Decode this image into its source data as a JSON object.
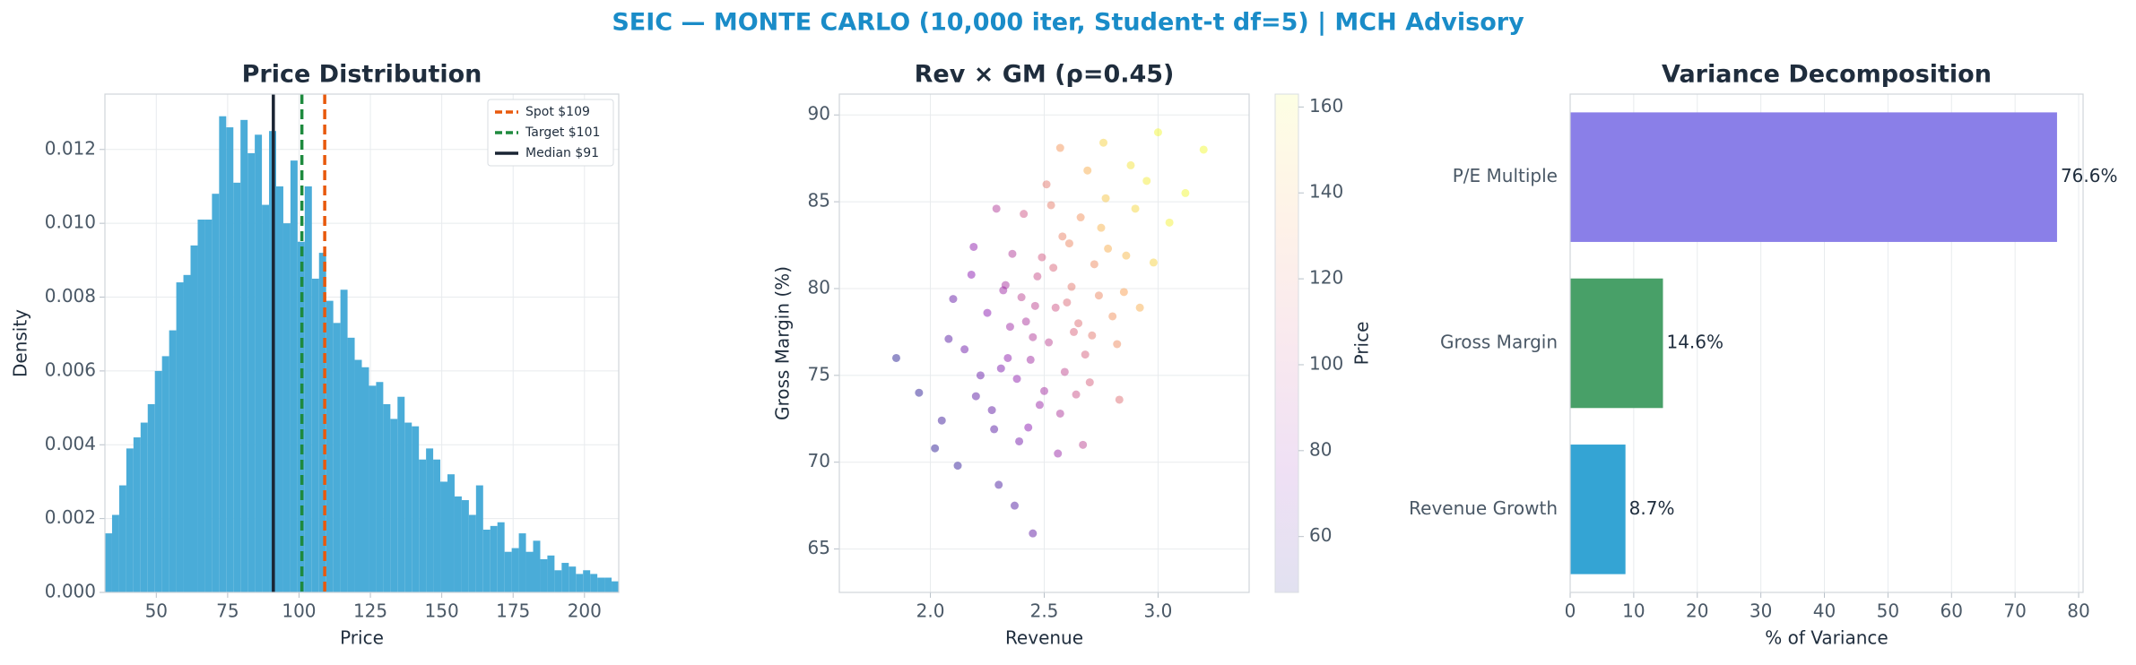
{
  "title": "SEIC — MONTE CARLO (10,000 iter, Student-t df=5) | MCH Advisory",
  "chart_data": [
    {
      "type": "histogram",
      "title": "Price Distribution",
      "xlabel": "Price",
      "ylabel": "Density",
      "color": "#4aacd8",
      "grid": true,
      "bins": [
        32,
        34.5,
        37,
        39.5,
        42,
        44.5,
        47,
        49.5,
        52,
        54.5,
        57,
        59.5,
        62,
        64.5,
        67,
        69.5,
        72,
        74.5,
        77,
        79.5,
        82,
        84.5,
        87,
        89.5,
        92,
        94.5,
        97,
        99.5,
        102,
        104.5,
        107,
        109.5,
        112,
        114.5,
        117,
        119.5,
        122,
        124.5,
        127,
        129.5,
        132,
        134.5,
        137,
        139.5,
        142,
        144.5,
        147,
        149.5,
        152,
        154.5,
        157,
        159.5,
        162,
        164.5,
        167,
        169.5,
        172,
        174.5,
        177,
        179.5,
        182,
        184.5,
        187,
        189.5,
        192,
        194.5,
        197,
        199.5,
        202,
        204.5,
        207,
        209.5,
        212
      ],
      "values": [
        0.0016,
        0.0021,
        0.0029,
        0.0039,
        0.0042,
        0.0046,
        0.0051,
        0.006,
        0.0064,
        0.0071,
        0.0084,
        0.0086,
        0.0094,
        0.0101,
        0.0101,
        0.0108,
        0.0129,
        0.0126,
        0.0111,
        0.0128,
        0.0119,
        0.0124,
        0.0105,
        0.0125,
        0.011,
        0.01,
        0.0117,
        0.0095,
        0.011,
        0.0085,
        0.0092,
        0.0079,
        0.0073,
        0.0082,
        0.0069,
        0.0063,
        0.0061,
        0.0056,
        0.0057,
        0.0051,
        0.0047,
        0.0053,
        0.0046,
        0.0045,
        0.0036,
        0.0039,
        0.0036,
        0.003,
        0.0032,
        0.0026,
        0.0025,
        0.0021,
        0.0029,
        0.0017,
        0.0018,
        0.0019,
        0.0011,
        0.0012,
        0.0016,
        0.0011,
        0.0014,
        0.0009,
        0.001,
        0.0006,
        0.0008,
        0.0007,
        0.0005,
        0.0006,
        0.0005,
        0.0004,
        0.0004,
        0.0003
      ],
      "xlim": [
        32,
        212
      ],
      "xticks": [
        50,
        75,
        100,
        125,
        150,
        175,
        200
      ],
      "ylim": [
        0,
        0.0135
      ],
      "yticks": [
        {
          "value": 0,
          "label": "0.000"
        },
        {
          "value": 0.002,
          "label": "0.002"
        },
        {
          "value": 0.004,
          "label": "0.004"
        },
        {
          "value": 0.006,
          "label": "0.006"
        },
        {
          "value": 0.008,
          "label": "0.008"
        },
        {
          "value": 0.01,
          "label": "0.010"
        },
        {
          "value": 0.012,
          "label": "0.012"
        }
      ],
      "legend": "upper right",
      "vlines": [
        {
          "name": "Spot $109",
          "value": 109,
          "color": "#e8590c",
          "style": "dashed"
        },
        {
          "name": "Target $101",
          "value": 101,
          "color": "#1e8a3e",
          "style": "dashed"
        },
        {
          "name": "Median $91",
          "value": 91,
          "color": "#1a2433",
          "style": "solid"
        }
      ]
    },
    {
      "type": "scatter",
      "title": "Rev × GM (ρ=0.45)",
      "xlabel": "Revenue",
      "ylabel": "Gross Margin (%)",
      "grid": true,
      "colormap": "plasma",
      "x": [
        2.45,
        2.62,
        2.31,
        2.78,
        2.55,
        2.2,
        2.9,
        2.4,
        2.68,
        2.35,
        2.5,
        2.72,
        2.15,
        2.85,
        2.58,
        2.28,
        2.47,
        2.63,
        2.38,
        2.95,
        2.05,
        2.52,
        2.66,
        2.42,
        2.8,
        2.33,
        2.57,
        2.75,
        2.25,
        2.6,
        2.44,
        3.05,
        2.12,
        2.7,
        2.36,
        2.54,
        2.48,
        2.88,
        2.18,
        2.65,
        2.3,
        2.82,
        2.41,
        2.59,
        2.74,
        2.22,
        2.51,
        2.39,
        2.98,
        2.08,
        2.69,
        2.46,
        2.56,
        2.77,
        2.27,
        2.61,
        2.34,
        3.12,
        1.95,
        2.53,
        2.43,
        2.86,
        2.19,
        2.64,
        2.49,
        2.32,
        2.71,
        2.1,
        2.92,
        2.37,
        2.76,
        2.29,
        2.67,
        2.02,
        3.0,
        2.57,
        1.85,
        2.83,
        2.45,
        3.2
      ],
      "values": [
        77.2,
        80.1,
        75.4,
        82.3,
        78.9,
        73.8,
        84.6,
        79.5,
        76.2,
        77.8,
        74.1,
        81.4,
        76.5,
        79.8,
        83.0,
        71.9,
        80.7,
        77.5,
        74.8,
        86.2,
        72.4,
        76.9,
        84.1,
        78.1,
        78.4,
        80.2,
        72.8,
        83.5,
        78.6,
        79.2,
        75.9,
        83.8,
        69.8,
        74.6,
        82.0,
        81.2,
        73.3,
        87.1,
        80.8,
        78.0,
        68.7,
        76.8,
        84.3,
        75.2,
        79.6,
        75.0,
        86.0,
        71.2,
        81.5,
        77.1,
        86.8,
        79.0,
        70.5,
        85.2,
        73.0,
        82.6,
        76.0,
        85.5,
        74.0,
        84.8,
        72.0,
        81.9,
        82.4,
        73.9,
        81.8,
        79.9,
        77.3,
        79.4,
        78.9,
        67.5,
        88.4,
        84.6,
        71.0,
        70.8,
        89.0,
        88.1,
        76.0,
        73.6,
        65.9,
        88.0
      ],
      "c": [
        92,
        118,
        72,
        138,
        104,
        63,
        152,
        96,
        108,
        84,
        86,
        126,
        68,
        134,
        122,
        62,
        101,
        110,
        78,
        158,
        55,
        96,
        128,
        89,
        128,
        88,
        90,
        140,
        76,
        112,
        85,
        160,
        52,
        108,
        92,
        111,
        82,
        156,
        76,
        114,
        58,
        126,
        104,
        98,
        124,
        66,
        118,
        70,
        150,
        62,
        138,
        97,
        82,
        146,
        64,
        124,
        78,
        162,
        50,
        120,
        76,
        142,
        78,
        102,
        106,
        84,
        118,
        66,
        138,
        60,
        150,
        92,
        96,
        50,
        162,
        130,
        48,
        114,
        64,
        164
      ],
      "xlim": [
        1.6,
        3.4
      ],
      "xticks": [
        {
          "value": 2,
          "label": "2.0"
        },
        2.5,
        {
          "value": 3,
          "label": "3.0"
        }
      ],
      "ylim": [
        62.5,
        91.2
      ],
      "yticks": [
        65,
        70,
        75,
        80,
        85,
        90
      ],
      "clim": [
        47,
        163
      ],
      "cticks": [
        60,
        80,
        100,
        120,
        140,
        160
      ],
      "clabel": "Price"
    },
    {
      "type": "barh",
      "title": "Variance Decomposition",
      "xlabel": "% of Variance",
      "grid": true,
      "categories": [
        "Revenue Growth",
        "Gross Margin",
        "P/E Multiple"
      ],
      "values": [
        8.7,
        14.6,
        76.6
      ],
      "value_labels": [
        "8.7%",
        "14.6%",
        "76.6%"
      ],
      "colors": [
        "#34a4d4",
        "#48a068",
        "#8a7fe8"
      ],
      "xlim": [
        0,
        80.7
      ],
      "xticks": [
        0,
        10,
        20,
        30,
        40,
        50,
        60,
        70,
        80
      ]
    }
  ]
}
